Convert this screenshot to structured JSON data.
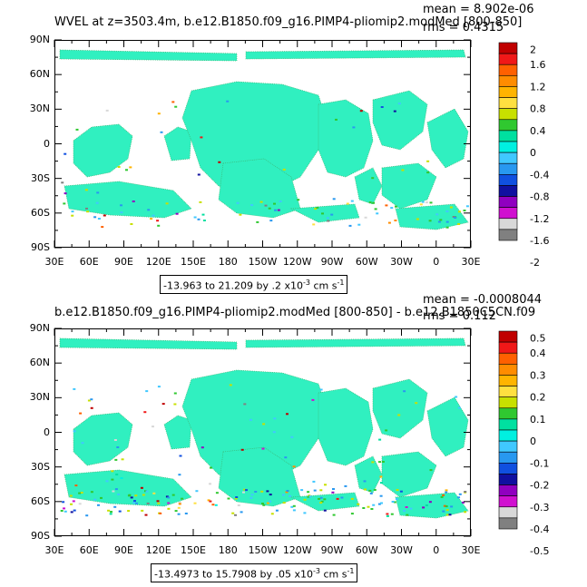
{
  "panels": [
    {
      "title": "WVEL at z=3503.4m, b.e12.B1850.f09_g16.PIMP4-pliomip2.modMed [800-850]",
      "mean_text": "mean = 8.902e-06",
      "rms_text": "rms = 0.4315",
      "range_text": "-13.963 to 21.209 by .2 x10",
      "range_exp": "-3",
      "range_units": " cm s",
      "range_units_exp": "-1",
      "y_labels": [
        "90N",
        "60N",
        "30N",
        "0",
        "30S",
        "60S",
        "90S"
      ],
      "x_labels": [
        "30E",
        "60E",
        "90E",
        "120E",
        "150E",
        "180",
        "150W",
        "120W",
        "90W",
        "60W",
        "30W",
        "0",
        "30E"
      ],
      "colorbar_labels": [
        "2",
        "1.6",
        "1.2",
        "0.8",
        "0.4",
        "0",
        "-0.4",
        "-0.8",
        "-1.2",
        "-1.6",
        "-2"
      ]
    },
    {
      "title": "b.e12.B1850.f09_g16.PIMP4-pliomip2.modMed [800-850] - b.e12.B1850C5CN.f09",
      "mean_text": "mean = -0.0008044",
      "rms_text": "rms = 0.112",
      "range_text": "-13.4973 to 15.7908 by .05 x10",
      "range_exp": "-3",
      "range_units": " cm s",
      "range_units_exp": "-1",
      "y_labels": [
        "90N",
        "60N",
        "30N",
        "0",
        "30S",
        "60S",
        "90S"
      ],
      "x_labels": [
        "30E",
        "60E",
        "90E",
        "120E",
        "150E",
        "180",
        "150W",
        "120W",
        "90W",
        "60W",
        "30W",
        "0",
        "30E"
      ],
      "colorbar_labels": [
        "0.5",
        "0.4",
        "0.3",
        "0.2",
        "0.1",
        "0",
        "-0.1",
        "-0.2",
        "-0.3",
        "-0.4",
        "-0.5"
      ]
    }
  ],
  "colorbar_colors": [
    "#c00000",
    "#f01818",
    "#ff6000",
    "#ff8c00",
    "#ffb400",
    "#ffe040",
    "#c8e000",
    "#30c830",
    "#00e0a0",
    "#00f0e0",
    "#40c8ff",
    "#2898f0",
    "#1050e0",
    "#1010a0",
    "#9000c0",
    "#d010d0",
    "#d8d8d8",
    "#808080"
  ],
  "field_color": "#30f0c0"
}
